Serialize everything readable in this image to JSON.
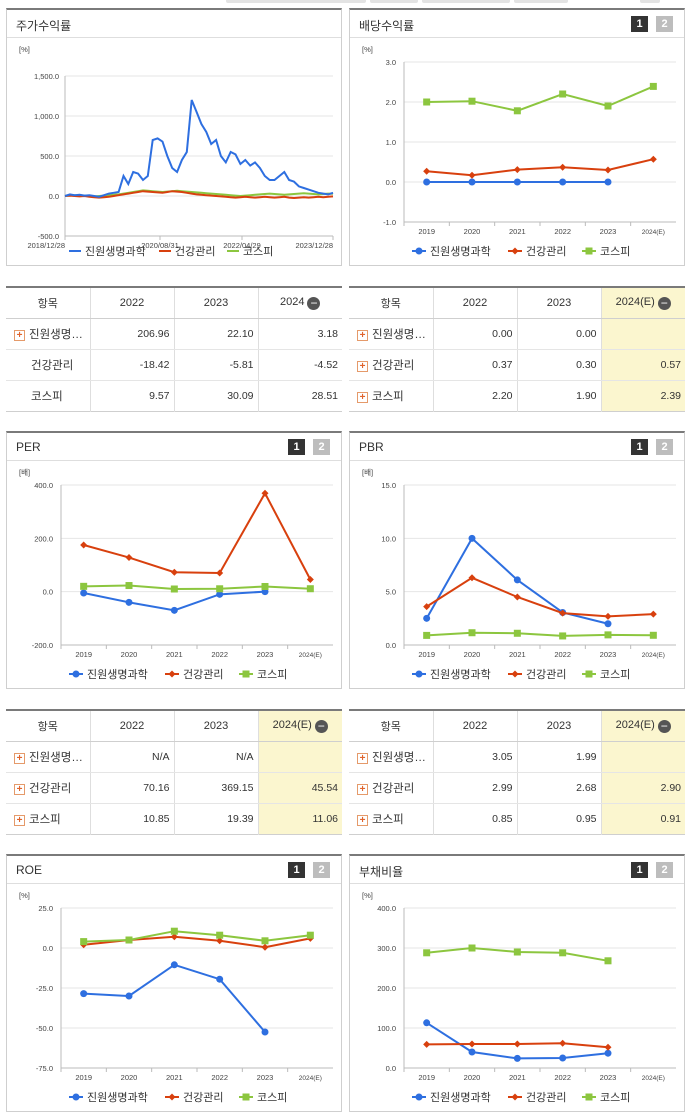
{
  "panels": {
    "stock": {
      "title": "주가수익률"
    },
    "dividend": {
      "title": "배당수익률",
      "tab1": "1",
      "tab2": "2"
    },
    "per": {
      "title": "PER",
      "tab1": "1",
      "tab2": "2"
    },
    "pbr": {
      "title": "PBR",
      "tab1": "1",
      "tab2": "2"
    },
    "roe": {
      "title": "ROE",
      "tab1": "1",
      "tab2": "2"
    },
    "debt": {
      "title": "부채비율",
      "tab1": "1",
      "tab2": "2"
    }
  },
  "colors": {
    "company": "#2e6fe0",
    "peer": "#d8400e",
    "index": "#8cc63f"
  },
  "tables": {
    "stock": {
      "headers": [
        "항목",
        "2022",
        "2023",
        "2024"
      ],
      "rows": [
        {
          "name": "진원생명…",
          "expand": true,
          "values": [
            "206.96",
            "22.10",
            "3.18"
          ]
        },
        {
          "name": "건강관리",
          "expand": false,
          "values": [
            "-18.42",
            "-5.81",
            "-4.52"
          ]
        },
        {
          "name": "코스피",
          "expand": false,
          "values": [
            "9.57",
            "30.09",
            "28.51"
          ]
        }
      ]
    },
    "dividend": {
      "headers": [
        "항목",
        "2022",
        "2023",
        "2024(E)"
      ],
      "rows": [
        {
          "name": "진원생명…",
          "expand": true,
          "values": [
            "0.00",
            "0.00",
            ""
          ]
        },
        {
          "name": "건강관리",
          "expand": true,
          "values": [
            "0.37",
            "0.30",
            "0.57"
          ]
        },
        {
          "name": "코스피",
          "expand": true,
          "values": [
            "2.20",
            "1.90",
            "2.39"
          ]
        }
      ]
    },
    "per": {
      "headers": [
        "항목",
        "2022",
        "2023",
        "2024(E)"
      ],
      "rows": [
        {
          "name": "진원생명…",
          "expand": true,
          "values": [
            "N/A",
            "N/A",
            ""
          ]
        },
        {
          "name": "건강관리",
          "expand": true,
          "values": [
            "70.16",
            "369.15",
            "45.54"
          ]
        },
        {
          "name": "코스피",
          "expand": true,
          "values": [
            "10.85",
            "19.39",
            "11.06"
          ]
        }
      ]
    },
    "pbr": {
      "headers": [
        "항목",
        "2022",
        "2023",
        "2024(E)"
      ],
      "rows": [
        {
          "name": "진원생명…",
          "expand": true,
          "values": [
            "3.05",
            "1.99",
            ""
          ]
        },
        {
          "name": "건강관리",
          "expand": true,
          "values": [
            "2.99",
            "2.68",
            "2.90"
          ]
        },
        {
          "name": "코스피",
          "expand": true,
          "values": [
            "0.85",
            "0.95",
            "0.91"
          ]
        }
      ]
    }
  },
  "chart_data": [
    {
      "id": "stock",
      "type": "line",
      "unit": "[%]",
      "ylim": [
        -500,
        1500
      ],
      "yticks": [
        "1,500.0",
        "1,000.0",
        "500.0",
        "0.0",
        "-500.0"
      ],
      "xticks": [
        "2018/12/28",
        "2020/08/31",
        "2022/04/29",
        "2023/12/28"
      ],
      "legend": [
        "진원생명과학",
        "건강관리",
        "코스피"
      ],
      "series": [
        {
          "name": "진원생명과학",
          "values": [
            0,
            20,
            10,
            15,
            5,
            10,
            0,
            -10,
            10,
            30,
            40,
            50,
            250,
            150,
            300,
            280,
            200,
            250,
            700,
            720,
            680,
            500,
            350,
            300,
            450,
            550,
            1200,
            1050,
            900,
            800,
            650,
            700,
            500,
            420,
            550,
            520,
            400,
            450,
            380,
            420,
            350,
            250,
            200,
            200,
            250,
            300,
            200,
            180,
            120,
            100,
            80,
            60,
            40,
            30,
            20,
            40
          ]
        },
        {
          "name": "건강관리",
          "values": [
            0,
            5,
            0,
            -5,
            0,
            -10,
            -15,
            -20,
            -15,
            -10,
            0,
            10,
            20,
            30,
            40,
            50,
            60,
            55,
            50,
            45,
            40,
            50,
            60,
            55,
            50,
            40,
            30,
            20,
            15,
            10,
            5,
            0,
            -5,
            -10,
            -15,
            -20,
            -15,
            -10,
            -15,
            -20,
            -15,
            -10,
            -15,
            -20,
            -15,
            -10,
            -20,
            -25,
            -20,
            -15,
            -20,
            -15,
            -10,
            -15,
            -10,
            -5
          ]
        },
        {
          "name": "코스피",
          "values": [
            0,
            5,
            10,
            8,
            5,
            0,
            -5,
            0,
            5,
            10,
            15,
            20,
            30,
            40,
            50,
            60,
            70,
            65,
            60,
            55,
            50,
            55,
            60,
            65,
            60,
            55,
            50,
            45,
            40,
            35,
            30,
            25,
            20,
            15,
            10,
            5,
            0,
            5,
            10,
            15,
            20,
            25,
            30,
            25,
            20,
            15,
            20,
            25,
            30,
            35,
            30,
            25,
            20,
            25,
            30,
            28
          ]
        }
      ]
    },
    {
      "id": "dividend",
      "type": "line",
      "unit": "[%]",
      "ylim": [
        -1.0,
        3.0
      ],
      "yticks": [
        "3.0",
        "2.0",
        "1.0",
        "0.0",
        "-1.0"
      ],
      "categories": [
        "2019",
        "2020",
        "2021",
        "2022",
        "2023",
        "2024(E)"
      ],
      "legend": [
        "진원생명과학",
        "건강관리",
        "코스피"
      ],
      "series": [
        {
          "name": "진원생명과학",
          "values": [
            0.0,
            0.0,
            0.0,
            0.0,
            0.0,
            null
          ]
        },
        {
          "name": "건강관리",
          "values": [
            0.27,
            0.17,
            0.31,
            0.37,
            0.3,
            0.57
          ]
        },
        {
          "name": "코스피",
          "values": [
            2.0,
            2.02,
            1.78,
            2.2,
            1.9,
            2.39
          ]
        }
      ]
    },
    {
      "id": "per",
      "type": "line",
      "unit": "[배]",
      "ylim": [
        -200,
        400
      ],
      "yticks": [
        "400.0",
        "200.0",
        "0.0",
        "-200.0"
      ],
      "categories": [
        "2019",
        "2020",
        "2021",
        "2022",
        "2023",
        "2024(E)"
      ],
      "legend": [
        "진원생명과학",
        "건강관리",
        "코스피"
      ],
      "series": [
        {
          "name": "진원생명과학",
          "values": [
            -5,
            -40,
            -70,
            -10,
            0,
            null
          ]
        },
        {
          "name": "건강관리",
          "values": [
            175,
            128,
            73,
            70.16,
            369.15,
            45.54
          ]
        },
        {
          "name": "코스피",
          "values": [
            20,
            23,
            10,
            10.85,
            19.39,
            11.06
          ]
        }
      ]
    },
    {
      "id": "pbr",
      "type": "line",
      "unit": "[배]",
      "ylim": [
        0,
        15
      ],
      "yticks": [
        "15.0",
        "10.0",
        "5.0",
        "0.0"
      ],
      "categories": [
        "2019",
        "2020",
        "2021",
        "2022",
        "2023",
        "2024(E)"
      ],
      "legend": [
        "진원생명과학",
        "건강관리",
        "코스피"
      ],
      "series": [
        {
          "name": "진원생명과학",
          "values": [
            2.5,
            10.0,
            6.1,
            3.05,
            1.99,
            null
          ]
        },
        {
          "name": "건강관리",
          "values": [
            3.6,
            6.3,
            4.5,
            2.99,
            2.68,
            2.9
          ]
        },
        {
          "name": "코스피",
          "values": [
            0.9,
            1.15,
            1.1,
            0.85,
            0.95,
            0.91
          ]
        }
      ]
    },
    {
      "id": "roe",
      "type": "line",
      "unit": "[%]",
      "ylim": [
        -75,
        25
      ],
      "yticks": [
        "25.0",
        "0.0",
        "-25.0",
        "-50.0",
        "-75.0"
      ],
      "categories": [
        "2019",
        "2020",
        "2021",
        "2022",
        "2023",
        "2024(E)"
      ],
      "legend": [
        "진원생명과학",
        "건강관리",
        "코스피"
      ],
      "series": [
        {
          "name": "진원생명과학",
          "values": [
            -28.5,
            -30,
            -10.5,
            -19.5,
            -52.5,
            null
          ]
        },
        {
          "name": "건강관리",
          "values": [
            2,
            5,
            7,
            4.5,
            0.5,
            6
          ]
        },
        {
          "name": "코스피",
          "values": [
            4,
            5,
            10.5,
            8,
            4.5,
            8
          ]
        }
      ]
    },
    {
      "id": "debt",
      "type": "line",
      "unit": "[%]",
      "ylim": [
        0,
        400
      ],
      "yticks": [
        "400.0",
        "300.0",
        "200.0",
        "100.0",
        "0.0"
      ],
      "categories": [
        "2019",
        "2020",
        "2021",
        "2022",
        "2023",
        "2024(E)"
      ],
      "legend": [
        "진원생명과학",
        "건강관리",
        "코스피"
      ],
      "series": [
        {
          "name": "진원생명과학",
          "values": [
            113,
            40,
            24,
            25,
            37,
            null
          ]
        },
        {
          "name": "건강관리",
          "values": [
            59,
            60,
            60,
            62,
            52,
            null
          ]
        },
        {
          "name": "코스피",
          "values": [
            288,
            300,
            290,
            288,
            268,
            null
          ]
        }
      ]
    }
  ]
}
